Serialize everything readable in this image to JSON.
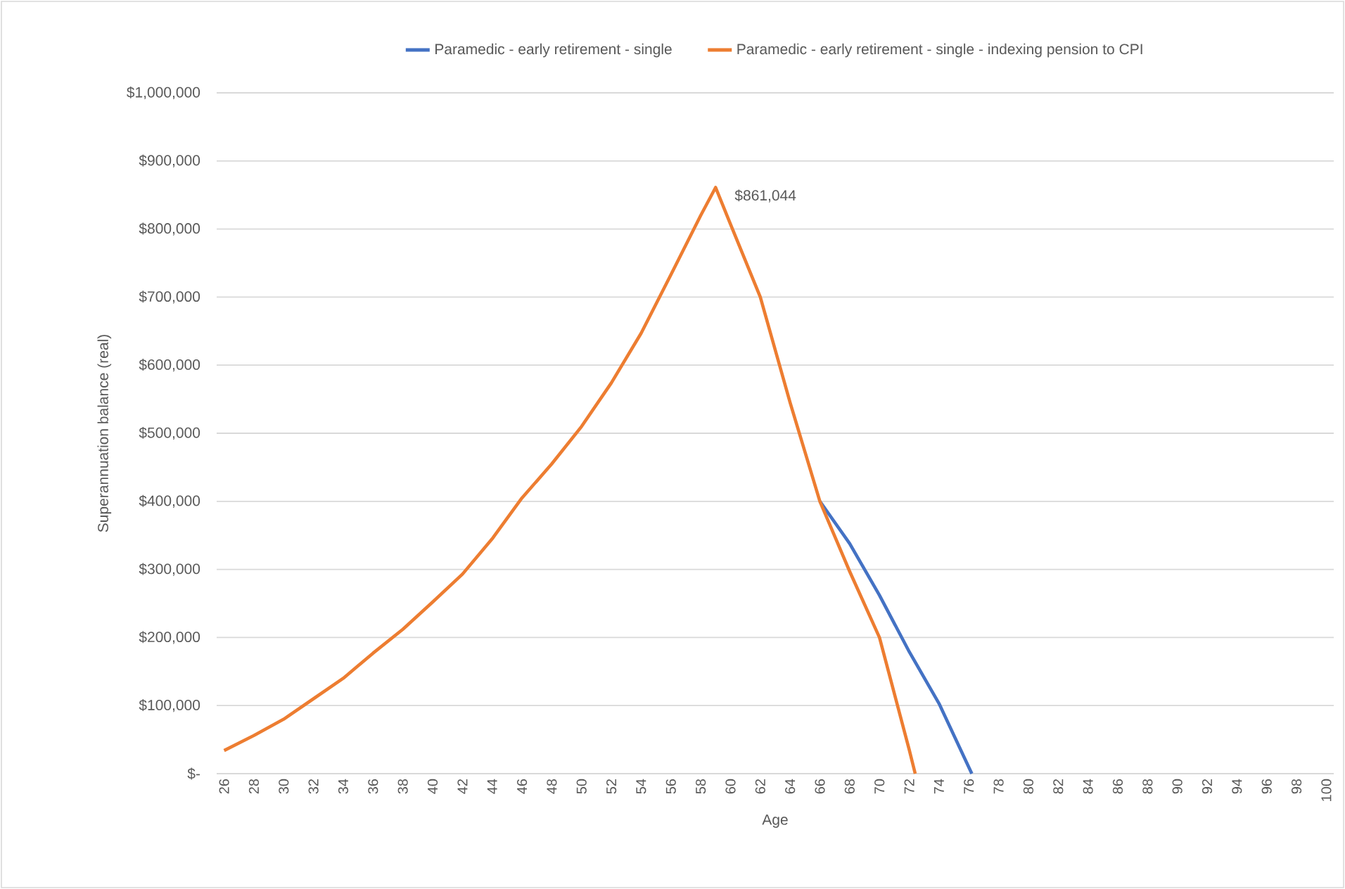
{
  "chart_data": {
    "type": "line",
    "xlabel": "Age",
    "ylabel": "Superannuation balance (real)",
    "series": [
      {
        "name": "Paramedic - early retirement - single",
        "color": "#4472c4",
        "x": [
          66,
          68,
          70,
          72,
          74,
          76.2
        ],
        "values": [
          400000,
          338000,
          262000,
          179000,
          103000,
          0
        ]
      },
      {
        "name": "Paramedic - early retirement - single - indexing pension to CPI",
        "color": "#ed7d31",
        "x": [
          26,
          28,
          30,
          32,
          34,
          36,
          38,
          40,
          42,
          44,
          46,
          48,
          50,
          52,
          54,
          56,
          58,
          59,
          60,
          62,
          64,
          66,
          68,
          70,
          72,
          72.4
        ],
        "values": [
          34000,
          56000,
          80000,
          110000,
          140000,
          177000,
          212000,
          252000,
          293000,
          345000,
          405000,
          455000,
          510000,
          574000,
          647000,
          733000,
          820000,
          861044,
          807000,
          700000,
          545000,
          400000,
          297000,
          200000,
          35000,
          0
        ]
      }
    ],
    "xlim": [
      25.5,
      100.5
    ],
    "xticks": [
      26,
      28,
      30,
      32,
      34,
      36,
      38,
      40,
      42,
      44,
      46,
      48,
      50,
      52,
      54,
      56,
      58,
      60,
      62,
      64,
      66,
      68,
      70,
      72,
      74,
      76,
      78,
      80,
      82,
      84,
      86,
      88,
      90,
      92,
      94,
      96,
      98,
      100
    ],
    "ylim": [
      0,
      1000000
    ],
    "yticks": [
      {
        "value": 0,
        "label": "$-"
      },
      {
        "value": 100000,
        "label": "$100,000"
      },
      {
        "value": 200000,
        "label": "$200,000"
      },
      {
        "value": 300000,
        "label": "$300,000"
      },
      {
        "value": 400000,
        "label": "$400,000"
      },
      {
        "value": 500000,
        "label": "$500,000"
      },
      {
        "value": 600000,
        "label": "$600,000"
      },
      {
        "value": 700000,
        "label": "$700,000"
      },
      {
        "value": 800000,
        "label": "$800,000"
      },
      {
        "value": 900000,
        "label": "$900,000"
      },
      {
        "value": 1000000,
        "label": "$1,000,000"
      }
    ],
    "annotations": [
      {
        "text": "$861,044",
        "x": 59,
        "y": 861044
      }
    ],
    "grid": "y",
    "legend": "top",
    "marker": "none",
    "line_style": "solid"
  }
}
